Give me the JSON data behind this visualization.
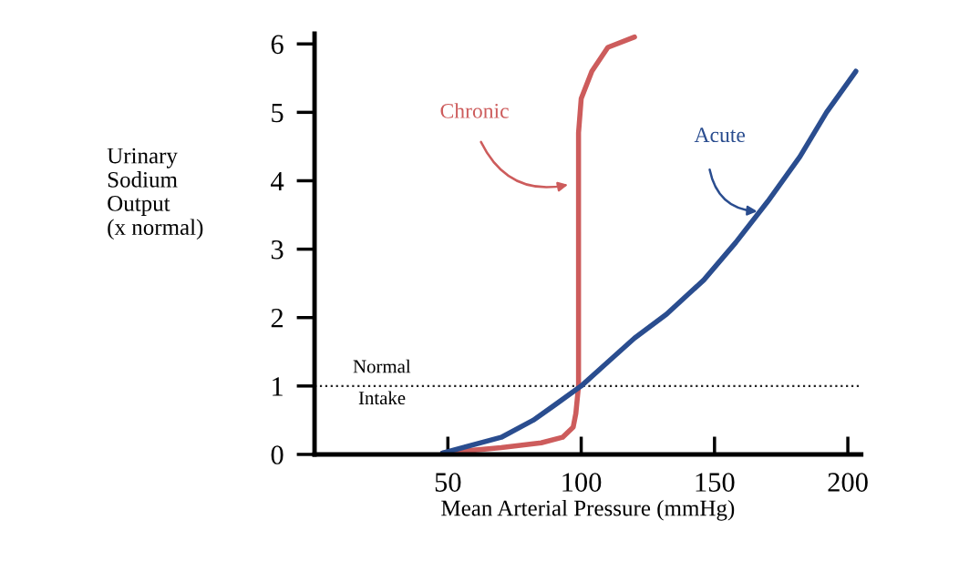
{
  "chart_data": {
    "type": "line",
    "xlabel": "Mean Arterial Pressure (mmHg)",
    "ylabel": "Urinary\nSodium\nOutput\n(x normal)",
    "xlim": [
      0,
      205
    ],
    "ylim": [
      0,
      6.15
    ],
    "xticks": [
      50,
      100,
      150,
      200
    ],
    "yticks": [
      0,
      1,
      2,
      3,
      4,
      5,
      6
    ],
    "grid": false,
    "legend": false,
    "marker": "none",
    "line_style": "solid",
    "series": [
      {
        "name": "Chronic",
        "color": "#cd5c5c",
        "x": [
          48,
          70,
          85,
          93,
          97,
          98,
          99,
          99,
          99,
          100,
          104,
          110,
          120
        ],
        "values": [
          0.02,
          0.1,
          0.17,
          0.25,
          0.4,
          0.6,
          1.0,
          2.0,
          4.7,
          5.2,
          5.6,
          5.95,
          6.1
        ]
      },
      {
        "name": "Acute",
        "color": "#2a4d8f",
        "x": [
          48,
          70,
          82,
          90,
          100,
          110,
          120,
          132,
          146,
          158,
          170,
          182,
          192,
          203
        ],
        "values": [
          0.02,
          0.25,
          0.5,
          0.72,
          1.0,
          1.35,
          1.7,
          2.05,
          2.55,
          3.1,
          3.7,
          4.35,
          5.0,
          5.6
        ]
      }
    ],
    "ref_lines": [
      {
        "axis": "y",
        "value": 1,
        "color": "#222222",
        "line_style": "dotted"
      }
    ],
    "annotations": [
      "Normal",
      "Intake"
    ]
  }
}
